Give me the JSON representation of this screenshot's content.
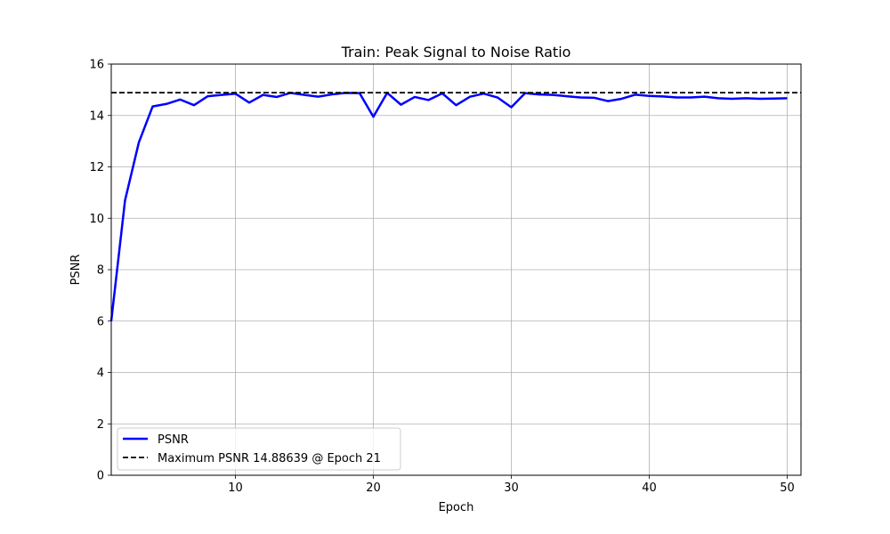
{
  "chart_data": {
    "type": "line",
    "title": "Train: Peak Signal to Noise Ratio",
    "xlabel": "Epoch",
    "ylabel": "PSNR",
    "xlim": [
      1,
      51
    ],
    "ylim": [
      0,
      16
    ],
    "x_ticks": [
      10,
      20,
      30,
      40,
      50
    ],
    "y_ticks": [
      0,
      2,
      4,
      6,
      8,
      10,
      12,
      14,
      16
    ],
    "grid": true,
    "legend_position": "lower-left",
    "x": [
      1,
      2,
      3,
      4,
      5,
      6,
      7,
      8,
      9,
      10,
      11,
      12,
      13,
      14,
      15,
      16,
      17,
      18,
      19,
      20,
      21,
      22,
      23,
      24,
      25,
      26,
      27,
      28,
      29,
      30,
      31,
      32,
      33,
      34,
      35,
      36,
      37,
      38,
      39,
      40,
      41,
      42,
      43,
      44,
      45,
      46,
      47,
      48,
      49,
      50
    ],
    "series": [
      {
        "name": "PSNR",
        "color": "#0000ff",
        "style": "solid",
        "values": [
          6.0,
          10.7,
          12.95,
          14.35,
          14.45,
          14.62,
          14.4,
          14.75,
          14.8,
          14.85,
          14.5,
          14.8,
          14.72,
          14.88,
          14.8,
          14.73,
          14.82,
          14.88,
          14.87,
          13.95,
          14.88,
          14.42,
          14.72,
          14.6,
          14.86,
          14.4,
          14.73,
          14.85,
          14.7,
          14.32,
          14.87,
          14.82,
          14.8,
          14.75,
          14.7,
          14.69,
          14.56,
          14.65,
          14.81,
          14.76,
          14.74,
          14.7,
          14.7,
          14.73,
          14.67,
          14.65,
          14.67,
          14.65,
          14.66,
          14.67
        ]
      },
      {
        "name": "Maximum PSNR 14.88639 @ Epoch 21",
        "color": "#000000",
        "style": "dashed",
        "value": 14.88639
      }
    ]
  }
}
